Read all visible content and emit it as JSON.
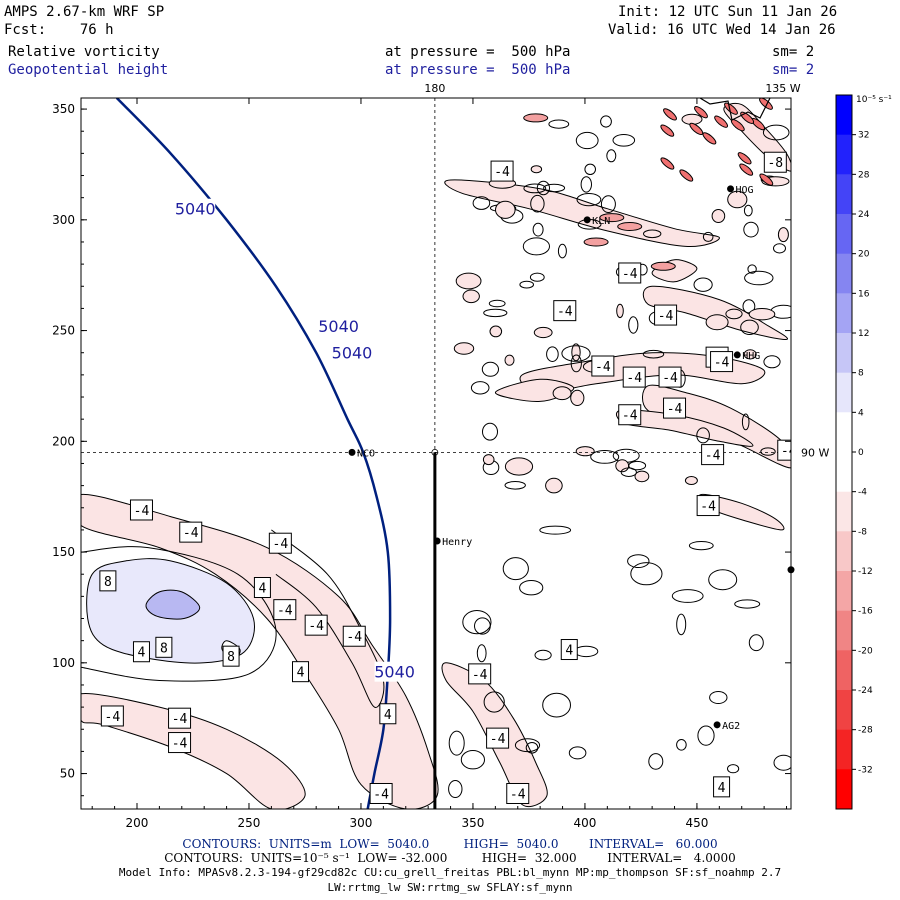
{
  "header": {
    "model": "AMPS 2.67-km WRF SP",
    "forecast": "Fcst:    76 h",
    "init": "Init: 12 UTC Sun 11 Jan 26",
    "valid": "Valid: 16 UTC Wed 14 Jan 26",
    "field1": "Relative vorticity",
    "field1_level": "at pressure =  500 hPa",
    "field1_sm": "sm= 2",
    "field2": "Geopotential height",
    "field2_level": "at pressure =  500 hPa",
    "field2_sm": "sm= 2"
  },
  "colors": {
    "height_contour": "#00207f",
    "height_label": "#1f1f9f",
    "neg_fill_light": "#fbe4e4",
    "pos_fill_light": "#e8e8fb",
    "pos_fill_med": "#b8b8f2"
  },
  "chart_data": {
    "type": "contour",
    "xlim": [
      175,
      492
    ],
    "ylim": [
      34,
      355
    ],
    "x_ticks": [
      200,
      250,
      300,
      350,
      400,
      450
    ],
    "y_ticks": [
      50,
      100,
      150,
      200,
      250,
      300,
      350
    ],
    "grid_lines": {
      "longitude_180": {
        "x": 333,
        "label": "180"
      },
      "longitude_135W": {
        "x": 492,
        "label": "135 W"
      },
      "latitude_90S": {
        "y": 195,
        "label": "90 W"
      }
    },
    "cross_section_line": {
      "x": 333,
      "y_from": 34,
      "y_to": 195
    },
    "stations": [
      {
        "name": "NCO",
        "x": 296,
        "y": 195
      },
      {
        "name": "Henry",
        "x": 334,
        "y": 155
      },
      {
        "name": "KLN",
        "x": 401,
        "y": 300
      },
      {
        "name": "HOG",
        "x": 465,
        "y": 314
      },
      {
        "name": "HHG",
        "x": 468,
        "y": 239
      },
      {
        "name": "AG2",
        "x": 459,
        "y": 72
      },
      {
        "name": "",
        "x": 492,
        "y": 142
      }
    ],
    "height_contour_value": 5040,
    "height_contour_path": [
      [
        191,
        355
      ],
      [
        215,
        330
      ],
      [
        240,
        300
      ],
      [
        262,
        270
      ],
      [
        280,
        240
      ],
      [
        294,
        210
      ],
      [
        301,
        195
      ],
      [
        307,
        175
      ],
      [
        312,
        150
      ],
      [
        313,
        120
      ],
      [
        312,
        95
      ],
      [
        310,
        70
      ],
      [
        306,
        50
      ],
      [
        303,
        34
      ]
    ],
    "height_labels": [
      {
        "text": "5040",
        "x": 226,
        "y": 305
      },
      {
        "text": "5040",
        "x": 290,
        "y": 252
      },
      {
        "text": "5040",
        "x": 296,
        "y": 240
      },
      {
        "text": "5040",
        "x": 315,
        "y": 96
      }
    ],
    "vorticity_labels": [
      {
        "text": "-4",
        "x": 202,
        "y": 169
      },
      {
        "text": "-4",
        "x": 224,
        "y": 159
      },
      {
        "text": "-4",
        "x": 264,
        "y": 154
      },
      {
        "text": "8",
        "x": 187,
        "y": 137
      },
      {
        "text": "4",
        "x": 256,
        "y": 134
      },
      {
        "text": "-4",
        "x": 266,
        "y": 124
      },
      {
        "text": "-4",
        "x": 280,
        "y": 117
      },
      {
        "text": "-4",
        "x": 297,
        "y": 112
      },
      {
        "text": "8",
        "x": 212,
        "y": 107
      },
      {
        "text": "4",
        "x": 202,
        "y": 105
      },
      {
        "text": "8",
        "x": 242,
        "y": 103
      },
      {
        "text": "4",
        "x": 273,
        "y": 96
      },
      {
        "text": "-4",
        "x": 189,
        "y": 76
      },
      {
        "text": "-4",
        "x": 219,
        "y": 75
      },
      {
        "text": "-4",
        "x": 219,
        "y": 64
      },
      {
        "text": "4",
        "x": 312,
        "y": 77
      },
      {
        "text": "-4",
        "x": 309,
        "y": 41
      },
      {
        "text": "-4",
        "x": 353,
        "y": 95
      },
      {
        "text": "-4",
        "x": 361,
        "y": 66
      },
      {
        "text": "-4",
        "x": 370,
        "y": 41
      },
      {
        "text": "4",
        "x": 393,
        "y": 106
      },
      {
        "text": "-4",
        "x": 440,
        "y": 215
      },
      {
        "text": "-4",
        "x": 455,
        "y": 171
      },
      {
        "text": "-4",
        "x": 491,
        "y": 196
      },
      {
        "text": "-4",
        "x": 436,
        "y": 257
      },
      {
        "text": "-4",
        "x": 438,
        "y": 229
      },
      {
        "text": "-4",
        "x": 408,
        "y": 234
      },
      {
        "text": "-4",
        "x": 391,
        "y": 259
      },
      {
        "text": "-4",
        "x": 420,
        "y": 212
      },
      {
        "text": "-4",
        "x": 422,
        "y": 229
      },
      {
        "text": "-4",
        "x": 420,
        "y": 276
      },
      {
        "text": "-4",
        "x": 459,
        "y": 238
      },
      {
        "text": "-4",
        "x": 461,
        "y": 236
      },
      {
        "text": "-4",
        "x": 457,
        "y": 194
      },
      {
        "text": "-8",
        "x": 485,
        "y": 326
      },
      {
        "text": "-4",
        "x": 363,
        "y": 322
      },
      {
        "text": "4",
        "x": 461,
        "y": 44
      }
    ]
  },
  "colorbar": {
    "unit_label": "10⁻⁵ s⁻¹",
    "ticks": [
      "32",
      "28",
      "24",
      "20",
      "16",
      "12",
      "8",
      "4",
      "0",
      "-4",
      "-8",
      "-12",
      "-16",
      "-20",
      "-24",
      "-28",
      "-32"
    ],
    "colors": [
      "#0000ff",
      "#2222fc",
      "#4444f7",
      "#6666f3",
      "#8585f1",
      "#a4a4f4",
      "#c6c6f7",
      "#e6e6fb",
      "#ffffff",
      "#ffffff",
      "#fbe6e6",
      "#f8c8c8",
      "#f4a6a6",
      "#f08585",
      "#ef6363",
      "#f04343",
      "#f42424",
      "#ff0000"
    ]
  },
  "footer": {
    "line1": "CONTOURS:  UNITS=m  LOW=  5040.0         HIGH=  5040.0        INTERVAL=   60.000",
    "line2": "CONTOURS:  UNITS=10⁻⁵ s⁻¹  LOW= -32.000         HIGH=  32.000        INTERVAL=   4.0000",
    "line3": "Model Info: MPASv8.2.3-194-gf29cd82c CU:cu_grell_freitas PBL:bl_mynn MP:mp_thompson SF:sf_noahmp 2.7",
    "line4": "LW:rrtmg_lw SW:rrtmg_sw SFLAY:sf_mynn"
  }
}
